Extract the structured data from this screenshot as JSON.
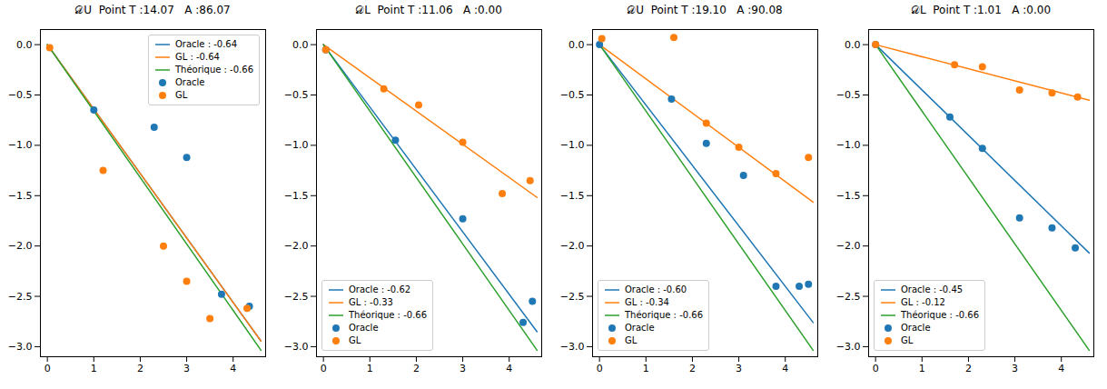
{
  "chart_data": [
    {
      "type": "scatter",
      "title": "𝒟U  Point T :14.07   A :86.07",
      "xlim": [
        -0.15,
        4.7
      ],
      "xticks": [
        0,
        1,
        2,
        3,
        4
      ],
      "ylim": [
        -3.1,
        0.15
      ],
      "yticks": [
        {
          "value": 0.0,
          "label": "0.0"
        },
        {
          "value": -0.5,
          "label": "−0.5"
        },
        {
          "value": -1.0,
          "label": "−1.0"
        },
        {
          "value": -1.5,
          "label": "−1.5"
        },
        {
          "value": -2.0,
          "label": "−2.0"
        },
        {
          "value": -2.5,
          "label": "−2.5"
        },
        {
          "value": -3.0,
          "label": "−3.0"
        }
      ],
      "grid": false,
      "legend": "upper right",
      "series": [
        {
          "name": "Oracle : -0.64",
          "type": "line",
          "color": "#1f77b4",
          "x": [
            0.0,
            4.6
          ],
          "values": [
            0,
            -2.944
          ]
        },
        {
          "name": "GL : -0.64",
          "type": "line",
          "color": "#ff7f0e",
          "x": [
            0.0,
            4.6
          ],
          "values": [
            0,
            -2.944
          ]
        },
        {
          "name": "Théorique : -0.66",
          "type": "line",
          "color": "#2ca02c",
          "x": [
            0.0,
            4.6
          ],
          "values": [
            0,
            -3.036
          ]
        },
        {
          "name": "Oracle",
          "type": "scatter",
          "marker": "o",
          "color": "#1f77b4",
          "x": [
            1.0,
            2.3,
            3.0,
            3.75,
            4.35
          ],
          "values": [
            -0.65,
            -0.82,
            -1.12,
            -2.48,
            -2.6
          ]
        },
        {
          "name": "GL",
          "type": "scatter",
          "marker": "o",
          "color": "#ff7f0e",
          "x": [
            0.05,
            1.2,
            2.5,
            3.0,
            3.5,
            4.3
          ],
          "values": [
            -0.03,
            -1.25,
            -2.0,
            -2.35,
            -2.72,
            -2.62
          ]
        }
      ]
    },
    {
      "type": "scatter",
      "title": "𝒟L  Point T :11.06   A :0.00",
      "xlim": [
        -0.15,
        4.7
      ],
      "xticks": [
        0,
        1,
        2,
        3,
        4
      ],
      "ylim": [
        -3.1,
        0.15
      ],
      "yticks": [
        {
          "value": 0.0,
          "label": "0.0"
        },
        {
          "value": -0.5,
          "label": "−0.5"
        },
        {
          "value": -1.0,
          "label": "−1.0"
        },
        {
          "value": -1.5,
          "label": "−1.5"
        },
        {
          "value": -2.0,
          "label": "−2.0"
        },
        {
          "value": -2.5,
          "label": "−2.5"
        },
        {
          "value": -3.0,
          "label": "−3.0"
        }
      ],
      "grid": false,
      "legend": "lower left",
      "series": [
        {
          "name": "Oracle : -0.62",
          "type": "line",
          "color": "#1f77b4",
          "x": [
            0.0,
            4.6
          ],
          "values": [
            0,
            -2.852
          ]
        },
        {
          "name": "GL : -0.33",
          "type": "line",
          "color": "#ff7f0e",
          "x": [
            0.0,
            4.6
          ],
          "values": [
            0,
            -1.518
          ]
        },
        {
          "name": "Théorique : -0.66",
          "type": "line",
          "color": "#2ca02c",
          "x": [
            0.0,
            4.6
          ],
          "values": [
            0,
            -3.036
          ]
        },
        {
          "name": "Oracle",
          "type": "scatter",
          "marker": "o",
          "color": "#1f77b4",
          "x": [
            0.05,
            1.55,
            3.0,
            4.3,
            4.5
          ],
          "values": [
            -0.05,
            -0.95,
            -1.73,
            -2.76,
            -2.55
          ]
        },
        {
          "name": "GL",
          "type": "scatter",
          "marker": "o",
          "color": "#ff7f0e",
          "x": [
            0.05,
            1.3,
            2.05,
            3.0,
            3.85,
            4.45
          ],
          "values": [
            -0.05,
            -0.44,
            -0.6,
            -0.97,
            -1.48,
            -1.35
          ]
        }
      ]
    },
    {
      "type": "scatter",
      "title": "𝒟U  Point T :19.10   A :90.08",
      "xlim": [
        -0.15,
        4.7
      ],
      "xticks": [
        0,
        1,
        2,
        3,
        4
      ],
      "ylim": [
        -3.1,
        0.15
      ],
      "yticks": [
        {
          "value": 0.0,
          "label": "0.0"
        },
        {
          "value": -0.5,
          "label": "−0.5"
        },
        {
          "value": -1.0,
          "label": "−1.0"
        },
        {
          "value": -1.5,
          "label": "−1.5"
        },
        {
          "value": -2.0,
          "label": "−2.0"
        },
        {
          "value": -2.5,
          "label": "−2.5"
        },
        {
          "value": -3.0,
          "label": "−3.0"
        }
      ],
      "grid": false,
      "legend": "lower left",
      "series": [
        {
          "name": "Oracle : -0.60",
          "type": "line",
          "color": "#1f77b4",
          "x": [
            0.0,
            4.6
          ],
          "values": [
            0,
            -2.76
          ]
        },
        {
          "name": "GL : -0.34",
          "type": "line",
          "color": "#ff7f0e",
          "x": [
            0.0,
            4.6
          ],
          "values": [
            0,
            -1.564
          ]
        },
        {
          "name": "Théorique : -0.66",
          "type": "line",
          "color": "#2ca02c",
          "x": [
            0.0,
            4.6
          ],
          "values": [
            0,
            -3.036
          ]
        },
        {
          "name": "Oracle",
          "type": "scatter",
          "marker": "o",
          "color": "#1f77b4",
          "x": [
            0.0,
            1.55,
            2.3,
            3.1,
            3.8,
            4.3,
            4.5
          ],
          "values": [
            0.0,
            -0.54,
            -0.98,
            -1.3,
            -2.4,
            -2.4,
            -2.38
          ]
        },
        {
          "name": "GL",
          "type": "scatter",
          "marker": "o",
          "color": "#ff7f0e",
          "x": [
            0.05,
            1.6,
            2.3,
            3.0,
            3.8,
            4.5
          ],
          "values": [
            0.06,
            0.07,
            -0.78,
            -1.02,
            -1.28,
            -1.12
          ]
        }
      ]
    },
    {
      "type": "scatter",
      "title": "𝒟L  Point T :1.01   A :0.00",
      "xlim": [
        -0.15,
        4.7
      ],
      "xticks": [
        0,
        1,
        2,
        3,
        4
      ],
      "ylim": [
        -3.1,
        0.15
      ],
      "yticks": [
        {
          "value": 0.0,
          "label": "0.0"
        },
        {
          "value": -0.5,
          "label": "−0.5"
        },
        {
          "value": -1.0,
          "label": "−1.0"
        },
        {
          "value": -1.5,
          "label": "−1.5"
        },
        {
          "value": -2.0,
          "label": "−2.0"
        },
        {
          "value": -2.5,
          "label": "−2.5"
        },
        {
          "value": -3.0,
          "label": "−3.0"
        }
      ],
      "grid": false,
      "legend": "lower left",
      "series": [
        {
          "name": "Oracle : -0.45",
          "type": "line",
          "color": "#1f77b4",
          "x": [
            0.0,
            4.6
          ],
          "values": [
            0,
            -2.07
          ]
        },
        {
          "name": "GL : -0.12",
          "type": "line",
          "color": "#ff7f0e",
          "x": [
            0.0,
            4.6
          ],
          "values": [
            0,
            -0.552
          ]
        },
        {
          "name": "Théorique : -0.66",
          "type": "line",
          "color": "#2ca02c",
          "x": [
            0.0,
            4.6
          ],
          "values": [
            0,
            -3.036
          ]
        },
        {
          "name": "Oracle",
          "type": "scatter",
          "marker": "o",
          "color": "#1f77b4",
          "x": [
            0.0,
            1.6,
            2.3,
            3.1,
            3.8,
            4.3
          ],
          "values": [
            0.0,
            -0.72,
            -1.03,
            -1.72,
            -1.82,
            -2.02
          ]
        },
        {
          "name": "GL",
          "type": "scatter",
          "marker": "o",
          "color": "#ff7f0e",
          "x": [
            0.0,
            1.7,
            2.3,
            3.1,
            3.8,
            4.35
          ],
          "values": [
            0.0,
            -0.2,
            -0.22,
            -0.45,
            -0.48,
            -0.52
          ]
        }
      ]
    }
  ]
}
